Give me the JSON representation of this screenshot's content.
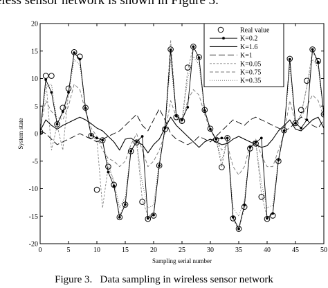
{
  "page": {
    "intro_text": "eless sensor network is shown in Figure 3.",
    "caption": "Figure 3.   Data sampling in wireless sensor network"
  },
  "chart_data": {
    "type": "line",
    "title": "",
    "xlabel": "Sampling serial number",
    "ylabel": "System state",
    "xlim": [
      0,
      50
    ],
    "ylim": [
      -20,
      20
    ],
    "xticks": [
      0,
      5,
      10,
      15,
      20,
      25,
      30,
      35,
      40,
      45,
      50
    ],
    "yticks": [
      -20,
      -15,
      -10,
      -5,
      0,
      5,
      10,
      15,
      20
    ],
    "grid": false,
    "legend_position": "top-right",
    "x": [
      0,
      1,
      2,
      3,
      4,
      5,
      6,
      7,
      8,
      9,
      10,
      11,
      12,
      13,
      14,
      15,
      16,
      17,
      18,
      19,
      20,
      21,
      22,
      23,
      24,
      25,
      26,
      27,
      28,
      29,
      30,
      31,
      32,
      33,
      34,
      35,
      36,
      37,
      38,
      39,
      40,
      41,
      42,
      43,
      44,
      45,
      46,
      47,
      48,
      49,
      50
    ],
    "series": [
      {
        "name": "Real value",
        "style": "circle-markers",
        "color": "#000000",
        "values": [
          0.3,
          10.5,
          10.5,
          1.7,
          4.7,
          8.2,
          14.8,
          14.0,
          4.7,
          -0.4,
          -10.2,
          -1.2,
          -6.0,
          -9.3,
          -15.2,
          -12.9,
          -3.2,
          -1.6,
          -12.4,
          -15.5,
          -14.9,
          -5.8,
          0.8,
          15.3,
          3.0,
          2.3,
          12.0,
          15.8,
          13.9,
          4.3,
          0.9,
          -1.1,
          -6.1,
          -0.8,
          -15.4,
          -17.3,
          -13.3,
          -2.7,
          -1.8,
          -11.5,
          -15.5,
          -14.9,
          -5.0,
          0.6,
          13.6,
          1.9,
          4.3,
          9.6,
          15.3,
          13.2,
          3.5
        ]
      },
      {
        "name": "K=0.2",
        "style": "solid-dots",
        "color": "#000000",
        "values": [
          0.2,
          9.8,
          7.5,
          1.7,
          4.0,
          7.5,
          14.7,
          13.5,
          4.6,
          -0.3,
          -0.8,
          -1.2,
          -7.0,
          -9.5,
          -15.2,
          -12.9,
          -3.2,
          -1.5,
          -0.5,
          -15.4,
          -14.8,
          -5.8,
          1.0,
          15.2,
          3.2,
          2.5,
          4.8,
          15.8,
          13.8,
          4.2,
          0.8,
          -1.0,
          -0.8,
          -0.8,
          -15.2,
          -17.3,
          -13.0,
          -2.5,
          -1.6,
          -0.8,
          -15.4,
          -14.5,
          -4.8,
          0.5,
          13.5,
          1.9,
          1.0,
          2.5,
          15.3,
          13.0,
          3.5
        ]
      },
      {
        "name": "K=1.6",
        "style": "solid",
        "color": "#000000",
        "values": [
          0.5,
          2.5,
          1.5,
          0.8,
          1.5,
          2.0,
          2.5,
          3.0,
          2.5,
          1.8,
          1.0,
          0.5,
          -0.5,
          -1.5,
          -3.0,
          -1.0,
          -0.8,
          -1.5,
          -2.0,
          -3.5,
          -2.0,
          -1.0,
          1.0,
          3.0,
          1.5,
          0.5,
          -0.5,
          -1.5,
          -2.5,
          -1.5,
          -1.0,
          -1.5,
          -2.0,
          -1.8,
          -1.0,
          -0.5,
          -1.0,
          -1.5,
          -2.0,
          -2.5,
          -2.2,
          -1.0,
          0.5,
          1.5,
          2.5,
          0.8,
          0.5,
          1.5,
          2.5,
          3.0,
          1.0
        ]
      },
      {
        "name": "K=1",
        "style": "long-dash",
        "color": "#000000",
        "values": [
          0.5,
          0.0,
          -1.0,
          -2.0,
          -1.5,
          -1.0,
          -0.5,
          0.0,
          -0.5,
          -1.0,
          -1.5,
          -1.0,
          -0.5,
          0.0,
          0.5,
          1.5,
          2.5,
          3.5,
          1.5,
          0.5,
          2.5,
          4.5,
          2.5,
          0.0,
          -1.0,
          -1.5,
          -2.0,
          -1.5,
          -0.5,
          -1.0,
          -1.5,
          -0.5,
          0.5,
          1.5,
          2.5,
          2.0,
          1.5,
          2.5,
          3.0,
          2.5,
          2.0,
          1.5,
          1.0,
          0.5,
          1.0,
          2.0,
          3.0,
          2.5,
          1.5,
          1.0,
          2.5
        ]
      },
      {
        "name": "K=0.05",
        "style": "short-dash",
        "color": "#888888",
        "values": [
          0.3,
          10.0,
          -3.0,
          1.5,
          -3.0,
          7.5,
          15.0,
          13.5,
          4.5,
          -0.3,
          -1.0,
          -13.5,
          -6.0,
          -9.0,
          -15.0,
          -12.5,
          -3.0,
          -1.5,
          -12.0,
          -15.0,
          -14.5,
          -5.5,
          0.8,
          17.0,
          3.0,
          2.2,
          11.5,
          15.8,
          13.8,
          4.2,
          0.8,
          -1.0,
          -6.0,
          -0.8,
          -15.5,
          -17.5,
          -13.5,
          -2.5,
          -1.5,
          -11.0,
          -15.2,
          -14.5,
          -5.0,
          0.5,
          13.5,
          1.5,
          3.5,
          8.5,
          15.0,
          12.8,
          3.5
        ]
      },
      {
        "name": "K=0.75",
        "style": "dash",
        "color": "#777777",
        "values": [
          1.0,
          6.0,
          4.0,
          3.0,
          2.5,
          5.0,
          9.0,
          8.0,
          4.0,
          1.0,
          -0.5,
          -3.0,
          -4.5,
          -5.0,
          -6.0,
          -5.0,
          -2.0,
          0.0,
          -3.0,
          -6.0,
          -5.0,
          -3.0,
          0.0,
          6.0,
          3.0,
          2.0,
          6.0,
          8.0,
          7.0,
          3.5,
          0.5,
          -1.0,
          -3.0,
          -2.0,
          -6.0,
          -7.5,
          -6.0,
          -2.0,
          -1.0,
          -4.0,
          -6.0,
          -6.0,
          -3.0,
          0.0,
          6.0,
          2.0,
          3.0,
          5.0,
          7.0,
          6.0,
          3.0
        ]
      },
      {
        "name": "K=0.35",
        "style": "dotted",
        "color": "#555555",
        "values": [
          0.5,
          8.5,
          9.0,
          2.0,
          3.5,
          7.0,
          13.5,
          12.5,
          4.5,
          0.0,
          -1.5,
          -1.5,
          -5.5,
          -8.5,
          -13.5,
          -11.5,
          -3.0,
          -1.5,
          -9.0,
          -13.5,
          -13.0,
          -5.0,
          0.5,
          13.5,
          3.0,
          2.0,
          10.0,
          14.0,
          12.5,
          4.0,
          0.8,
          -1.0,
          -5.0,
          -1.0,
          -13.5,
          -15.0,
          -12.0,
          -2.5,
          -1.5,
          -9.0,
          -13.5,
          -13.0,
          -4.5,
          0.5,
          12.0,
          2.0,
          3.5,
          8.5,
          13.5,
          12.0,
          3.5
        ]
      }
    ]
  }
}
